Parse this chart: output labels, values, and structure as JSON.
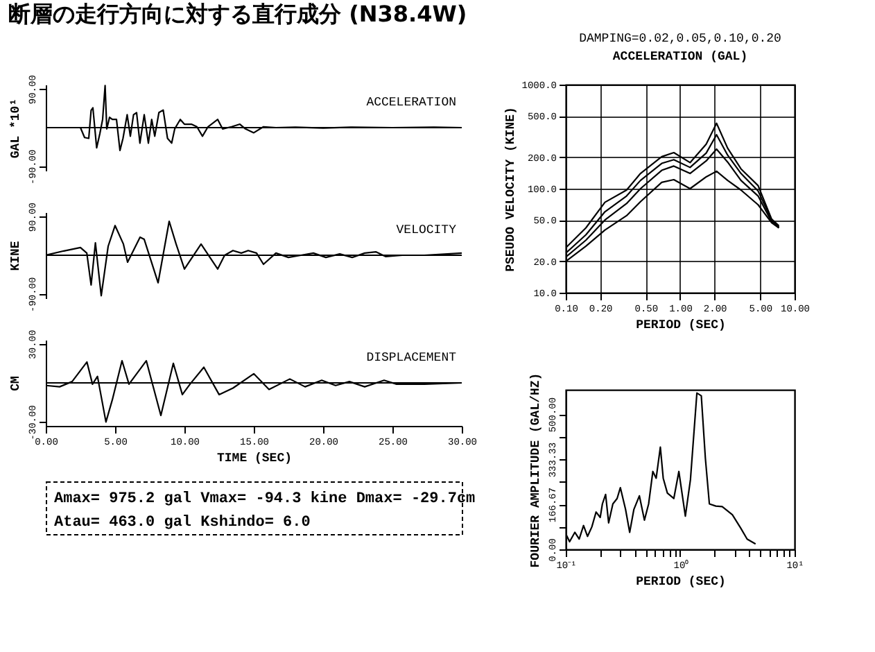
{
  "chart_data": [
    {
      "type": "line",
      "title": "断層の走行方向に対する直行成分 (N38.4W)",
      "ylabel": "GAL *10¹",
      "annotations": [
        "ACCELERATION"
      ],
      "xlim": [
        0,
        30
      ],
      "ylim": [
        -100,
        100
      ],
      "yticks": [
        {
          "value": -90,
          "label": "-90.00"
        },
        {
          "value": 90,
          "label": "90.00"
        }
      ],
      "tick_labels": "y",
      "ref_lines": [
        {
          "axis": "y",
          "value": 0
        }
      ],
      "x": [
        0,
        2.5,
        2.8,
        3.1,
        3.27,
        3.4,
        3.67,
        3.9,
        4.1,
        4.28,
        4.4,
        4.6,
        4.8,
        5.1,
        5.35,
        5.57,
        5.87,
        6.1,
        6.33,
        6.55,
        6.79,
        7.1,
        7.4,
        7.64,
        7.86,
        8.16,
        8.47,
        8.78,
        9.08,
        9.3,
        9.7,
        10.0,
        10.5,
        10.9,
        11.3,
        11.7,
        12.4,
        12.75,
        13.4,
        14.0,
        14.4,
        15.0,
        15.7,
        16.6,
        18,
        20,
        22,
        25,
        28,
        30
      ],
      "series": [
        {
          "color": "#000000",
          "values": [
            0,
            0,
            -23,
            -25,
            40,
            46,
            -47,
            -14,
            19,
            98,
            -3,
            24,
            19,
            19,
            -53,
            -25,
            30,
            -20,
            30,
            35,
            -36,
            30,
            -36,
            19,
            -20,
            35,
            41,
            -25,
            -36,
            -3,
            19,
            8,
            8,
            2,
            -20,
            2,
            19,
            -3,
            2,
            8,
            -3,
            -12,
            2,
            0,
            1,
            -1,
            1,
            0,
            1,
            0
          ]
        }
      ]
    },
    {
      "type": "line",
      "ylabel": "KINE",
      "annotations": [
        "VELOCITY"
      ],
      "xlim": [
        0,
        30
      ],
      "ylim": [
        -100,
        100
      ],
      "yticks": [
        {
          "value": -90,
          "label": "-90.00"
        },
        {
          "value": 90,
          "label": "90.00"
        }
      ],
      "tick_labels": "y",
      "ref_lines": [
        {
          "axis": "y",
          "value": 0
        }
      ],
      "x": [
        0,
        1.3,
        2.5,
        2.96,
        3.27,
        3.58,
        4.0,
        4.5,
        5.0,
        5.6,
        5.9,
        6.8,
        7.1,
        8.1,
        8.9,
        9.4,
        10.0,
        11.2,
        12.4,
        12.9,
        13.5,
        14.1,
        14.6,
        15.2,
        15.7,
        16.6,
        17.5,
        18.4,
        19.3,
        20.2,
        21.2,
        22.1,
        23.0,
        23.8,
        24.5,
        25.7,
        27.3,
        30
      ],
      "series": [
        {
          "color": "#000000",
          "values": [
            0,
            10,
            18,
            5,
            -69,
            29,
            -94,
            21,
            69,
            26,
            -16,
            42,
            37,
            -64,
            79,
            26,
            -32,
            26,
            -32,
            0,
            11,
            5,
            11,
            5,
            -21,
            5,
            -5,
            0,
            5,
            -5,
            3,
            -5,
            5,
            8,
            -3,
            0,
            0,
            5
          ]
        }
      ]
    },
    {
      "type": "line",
      "xlabel": "TIME (SEC)",
      "ylabel": "CM",
      "annotations": [
        "DISPLACEMENT"
      ],
      "xlim": [
        0,
        30
      ],
      "ylim": [
        -33,
        33
      ],
      "xticks": [
        {
          "value": 0,
          "label": "0.00"
        },
        {
          "value": 5,
          "label": "5.00"
        },
        {
          "value": 10,
          "label": "10.00"
        },
        {
          "value": 15,
          "label": "15.00"
        },
        {
          "value": 20,
          "label": "20.00"
        },
        {
          "value": 25,
          "label": "25.00"
        },
        {
          "value": 30,
          "label": "30.00"
        }
      ],
      "yticks": [
        {
          "value": -30,
          "label": "-30.00"
        },
        {
          "value": 30,
          "label": "30.00"
        }
      ],
      "ref_lines": [
        {
          "axis": "y",
          "value": 0
        }
      ],
      "x": [
        0,
        1.0,
        1.9,
        2.97,
        3.37,
        3.73,
        4.34,
        4.8,
        5.5,
        6.0,
        7.25,
        8.3,
        9.2,
        9.85,
        10.4,
        11.4,
        12.5,
        13.5,
        15.0,
        16.1,
        17.6,
        18.7,
        19.9,
        20.9,
        21.9,
        23.0,
        24.4,
        25.3,
        27.3,
        30
      ],
      "series": [
        {
          "color": "#000000",
          "values": [
            -2,
            -3,
            1,
            16,
            -1,
            5,
            -30,
            -13,
            17,
            -1,
            17,
            -25,
            15,
            -9,
            -1,
            12,
            -9,
            -4,
            7,
            -5,
            3,
            -3,
            2,
            -2,
            1,
            -3,
            2,
            -1,
            -1,
            0
          ]
        }
      ]
    },
    {
      "type": "other",
      "annotations": [
        "Amax= 975.2 gal Vmax= -94.3 kine Dmax= -29.7cm",
        "Atau= 463.0 gal Kshindo= 6.0"
      ]
    },
    {
      "type": "line",
      "xlabel": "PERIOD (SEC)",
      "ylabel": "PSEUDO VELOCITY (KINE)",
      "annotations": [
        "DAMPING=0.02,0.05,0.10,0.20",
        "ACCELERATION (GAL)"
      ],
      "log": "xy",
      "grid": true,
      "xlim": [
        0.1,
        10
      ],
      "ylim": [
        10,
        1000
      ],
      "xticks": [
        {
          "value": 0.1,
          "label": "0.10"
        },
        {
          "value": 0.2,
          "label": "0.20"
        },
        {
          "value": 0.5,
          "label": "0.50"
        },
        {
          "value": 1,
          "label": "1.00"
        },
        {
          "value": 2,
          "label": "2.00"
        },
        {
          "value": 5,
          "label": "5.00"
        },
        {
          "value": 10,
          "label": "10.00"
        }
      ],
      "yticks": [
        {
          "value": 10,
          "label": "10.0"
        },
        {
          "value": 20,
          "label": "20.0"
        },
        {
          "value": 50,
          "label": "50.0"
        },
        {
          "value": 100,
          "label": "100.0"
        },
        {
          "value": 200,
          "label": "200.0"
        },
        {
          "value": 500,
          "label": "500.0"
        },
        {
          "value": 1000,
          "label": "1000.0"
        }
      ],
      "x": [
        0.1,
        0.15,
        0.22,
        0.34,
        0.45,
        0.69,
        0.88,
        1.22,
        1.69,
        2.08,
        2.6,
        3.4,
        4.8,
        6.3,
        7.3
      ],
      "series": [
        {
          "color": "#000000",
          "values": [
            27,
            42,
            74,
            97,
            140,
            203,
            222,
            178,
            268,
            425,
            245,
            155,
            107,
            51,
            44
          ]
        },
        {
          "color": "#000000",
          "values": [
            24,
            36,
            60,
            85,
            120,
            175,
            190,
            160,
            220,
            330,
            210,
            140,
            95,
            50,
            43
          ]
        },
        {
          "color": "#000000",
          "values": [
            22,
            32,
            50,
            72,
            100,
            150,
            165,
            140,
            185,
            240,
            180,
            120,
            85,
            48,
            42
          ]
        },
        {
          "color": "#000000",
          "values": [
            20,
            28,
            40,
            55,
            75,
            115,
            122,
            100,
            130,
            147,
            120,
            97,
            70,
            47,
            42
          ]
        }
      ]
    },
    {
      "type": "line",
      "xlabel": "PERIOD (SEC)",
      "ylabel": "FOURIER AMPLITUDE (GAL/HZ)",
      "log": "x",
      "xlim": [
        0.1,
        10
      ],
      "ylim": [
        0,
        590
      ],
      "xticks": [
        {
          "value": 0.1,
          "label": "10⁻¹"
        },
        {
          "value": 0.2,
          "label": null
        },
        {
          "value": 0.3,
          "label": null
        },
        {
          "value": 0.4,
          "label": null
        },
        {
          "value": 0.5,
          "label": null
        },
        {
          "value": 0.6,
          "label": null
        },
        {
          "value": 0.7,
          "label": null
        },
        {
          "value": 0.8,
          "label": null
        },
        {
          "value": 0.9,
          "label": null
        },
        {
          "value": 1,
          "label": "10⁰"
        },
        {
          "value": 2,
          "label": null
        },
        {
          "value": 3,
          "label": null
        },
        {
          "value": 4,
          "label": null
        },
        {
          "value": 5,
          "label": null
        },
        {
          "value": 6,
          "label": null
        },
        {
          "value": 7,
          "label": null
        },
        {
          "value": 8,
          "label": null
        },
        {
          "value": 9,
          "label": null
        },
        {
          "value": 10,
          "label": "10¹"
        }
      ],
      "yticks": [
        {
          "value": 0,
          "label": "0.00"
        },
        {
          "value": 83.33,
          "label": null
        },
        {
          "value": 166.67,
          "label": "166.67"
        },
        {
          "value": 250,
          "label": null
        },
        {
          "value": 333.33,
          "label": "333.33"
        },
        {
          "value": 416.67,
          "label": null
        },
        {
          "value": 500,
          "label": "500.00"
        }
      ],
      "x": [
        0.1,
        0.108,
        0.12,
        0.131,
        0.143,
        0.155,
        0.169,
        0.184,
        0.2,
        0.209,
        0.223,
        0.237,
        0.258,
        0.281,
        0.3,
        0.333,
        0.362,
        0.394,
        0.44,
        0.487,
        0.53,
        0.577,
        0.617,
        0.671,
        0.711,
        0.773,
        0.88,
        0.974,
        1.11,
        1.23,
        1.4,
        1.53,
        1.66,
        1.8,
        2.05,
        2.33,
        2.86,
        3.39,
        3.85,
        4.56
      ],
      "series": [
        {
          "color": "#000000",
          "values": [
            58,
            28,
            63,
            38,
            88,
            48,
            83,
            138,
            118,
            168,
            203,
            98,
            168,
            188,
            228,
            148,
            63,
            148,
            198,
            108,
            168,
            288,
            263,
            378,
            263,
            208,
            188,
            288,
            123,
            258,
            578,
            568,
            338,
            168,
            160,
            158,
            128,
            78,
            38,
            20
          ]
        }
      ]
    }
  ]
}
